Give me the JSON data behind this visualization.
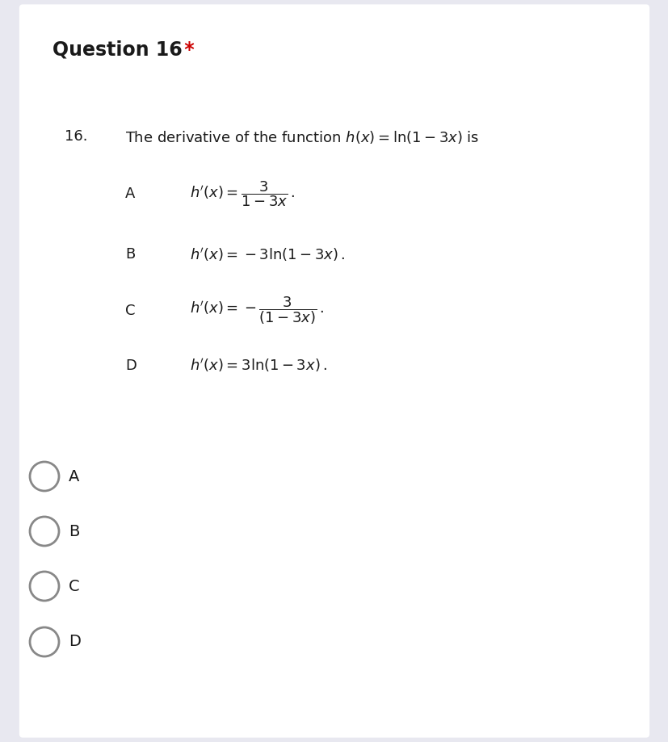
{
  "background_color": "#e8e8f0",
  "card_color": "#ffffff",
  "title_text": "Question 16",
  "asterisk_text": " *",
  "asterisk_color": "#cc0000",
  "question_number": "16.",
  "question_text": "The derivative of the function $h(x)=\\ln(1-3x)$ is",
  "options": [
    {
      "label": "A",
      "formula": "$h'(x)=\\dfrac{3}{1-3x}\\,.$"
    },
    {
      "label": "B",
      "formula": "$h'(x)=-3\\ln(1-3x)\\,.$"
    },
    {
      "label": "C",
      "formula": "$h'(x)=-\\dfrac{3}{(1-3x)}\\,.$"
    },
    {
      "label": "D",
      "formula": "$h'(x)=3\\ln(1-3x)\\,.$"
    }
  ],
  "radio_labels": [
    "A",
    "B",
    "C",
    "D"
  ],
  "title_fontsize": 17,
  "question_fontsize": 13,
  "option_label_fontsize": 13,
  "option_formula_fontsize": 13,
  "radio_label_fontsize": 14,
  "fig_width": 8.28,
  "fig_height": 9.19,
  "dpi": 100
}
